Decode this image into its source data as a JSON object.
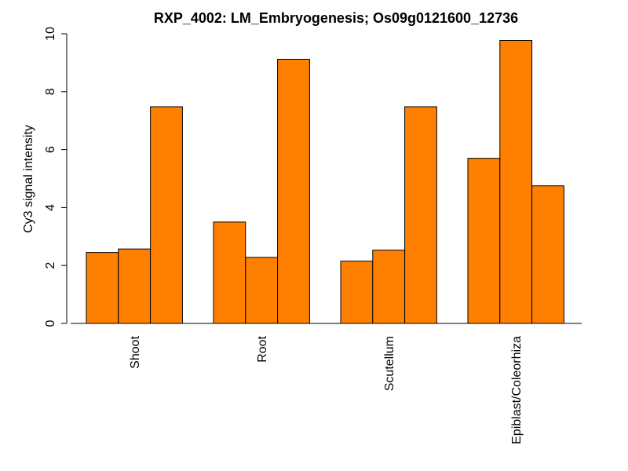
{
  "chart_data": {
    "type": "bar",
    "title": "RXP_4002: LM_Embryogenesis; Os09g0121600_12736",
    "xlabel": "",
    "ylabel": "Cy3 signal intensity",
    "ylim": [
      0,
      10
    ],
    "yticks": [
      "0",
      "2",
      "4",
      "6",
      "8",
      "10"
    ],
    "categories": [
      "Shoot",
      "Root",
      "Scutellum",
      "Epiblast/Coleorhiza"
    ],
    "series": [
      {
        "values": [
          2.45,
          3.5,
          2.15,
          5.7
        ]
      },
      {
        "values": [
          2.57,
          2.28,
          2.53,
          9.77
        ]
      },
      {
        "values": [
          7.48,
          9.12,
          7.48,
          4.75
        ]
      }
    ],
    "bar_color": "#FF7F00",
    "bar_stroke": "#000000",
    "grid": false,
    "legend": "none"
  }
}
